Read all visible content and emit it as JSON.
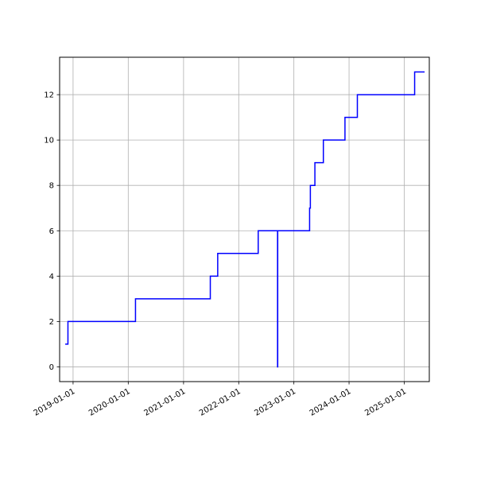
{
  "chart_data": {
    "type": "line",
    "title": "",
    "xlabel": "",
    "ylabel": "",
    "grid": true,
    "x_type": "date",
    "xlim": [
      "2018-10-04",
      "2025-06-15"
    ],
    "ylim": [
      -0.65,
      13.65
    ],
    "x_ticks": [
      "2019-01-01",
      "2020-01-01",
      "2021-01-01",
      "2022-01-01",
      "2023-01-01",
      "2024-01-01",
      "2025-01-01"
    ],
    "y_ticks": [
      0,
      2,
      4,
      6,
      8,
      10,
      12
    ],
    "series": [
      {
        "color": "#0000ff",
        "step": "post",
        "points": [
          [
            "2018-11-10",
            1
          ],
          [
            "2018-11-28",
            2
          ],
          [
            "2020-02-18",
            3
          ],
          [
            "2021-06-27",
            4
          ],
          [
            "2021-08-15",
            5
          ],
          [
            "2022-05-10",
            6
          ],
          [
            "2022-09-15",
            0
          ],
          [
            "2022-09-16",
            6
          ],
          [
            "2023-04-15",
            7
          ],
          [
            "2023-04-20",
            8
          ],
          [
            "2023-05-20",
            9
          ],
          [
            "2023-07-15",
            10
          ],
          [
            "2023-12-05",
            11
          ],
          [
            "2024-02-25",
            12
          ],
          [
            "2025-03-10",
            13
          ],
          [
            "2025-05-15",
            13
          ]
        ]
      }
    ]
  }
}
